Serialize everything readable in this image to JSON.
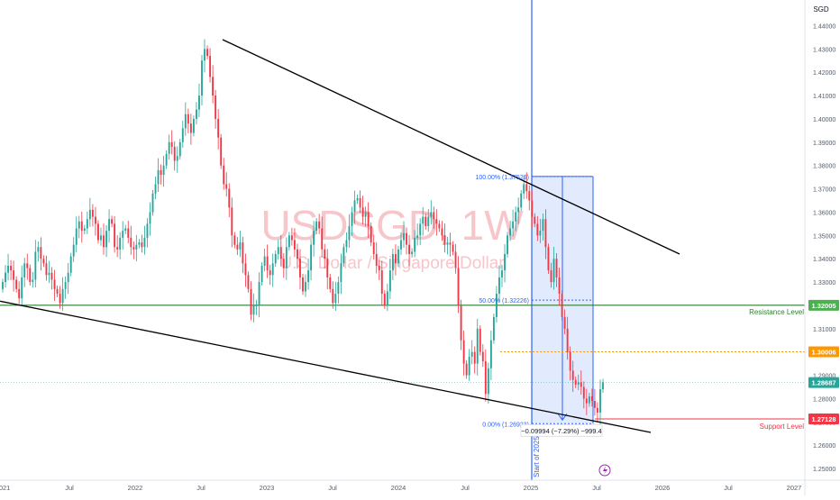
{
  "chart_data": {
    "type": "candlestick",
    "symbol": "USDSGD",
    "interval": "1W",
    "watermark_symbol": "USDSGD, 1W",
    "watermark_name": "U.S. Dollar / Singapore Dollar",
    "currency": "SGD",
    "ylim": [
      1.245,
      1.451
    ],
    "y_ticks": [
      "1.44000",
      "1.43000",
      "1.42000",
      "1.41000",
      "1.40000",
      "1.39000",
      "1.38000",
      "1.37000",
      "1.36000",
      "1.35000",
      "1.34000",
      "1.33000",
      "1.32000",
      "1.31000",
      "1.30000",
      "1.29000",
      "1.28000",
      "1.27000",
      "1.26000",
      "1.25000"
    ],
    "x_ticks": [
      "2021",
      "Jul",
      "2022",
      "Jul",
      "2023",
      "Jul",
      "2024",
      "Jul",
      "2025",
      "Jul",
      "2026",
      "Jul",
      "2027"
    ],
    "price_badges": [
      {
        "value": "1.32005",
        "color": "#4caf50"
      },
      {
        "value": "1.30006",
        "color": "#ff9800"
      },
      {
        "value": "1.28687",
        "color": "#26a69a"
      },
      {
        "value": "1.27128",
        "color": "#f23645"
      }
    ],
    "levels": {
      "resistance": {
        "value": 1.32005,
        "label": "Resistance Level",
        "color": "#2e7d32"
      },
      "support": {
        "value": 1.27128,
        "label": "Support Level",
        "color": "#f23645"
      },
      "dotted": {
        "value": 1.30006,
        "color": "#ff9800"
      },
      "current": {
        "value": 1.28687,
        "color": "#26a69a"
      }
    },
    "fib": [
      {
        "label": "100.00% (1.37529)"
      },
      {
        "label": "50.00% (1.32226)"
      },
      {
        "label": "0.00% (1.26923)"
      }
    ],
    "measure_label": "−0.09994 (−7.29%) −999.4",
    "vline_label": "Start of 2025",
    "colors": {
      "up": "#26a69a",
      "down": "#f23645",
      "trend": "#000000",
      "vline": "#2962ff",
      "box": "#dbe6fd"
    },
    "candles_close": [
      1.33,
      1.334,
      1.337,
      1.335,
      1.331,
      1.327,
      1.323,
      1.332,
      1.338,
      1.336,
      1.33,
      1.331,
      1.343,
      1.345,
      1.34,
      1.338,
      1.333,
      1.334,
      1.331,
      1.327,
      1.325,
      1.321,
      1.327,
      1.33,
      1.334,
      1.341,
      1.346,
      1.353,
      1.356,
      1.352,
      1.353,
      1.357,
      1.361,
      1.358,
      1.355,
      1.348,
      1.35,
      1.345,
      1.352,
      1.357,
      1.355,
      1.345,
      1.344,
      1.349,
      1.352,
      1.353,
      1.349,
      1.345,
      1.344,
      1.346,
      1.347,
      1.345,
      1.349,
      1.355,
      1.36,
      1.368,
      1.372,
      1.378,
      1.376,
      1.38,
      1.385,
      1.39,
      1.388,
      1.382,
      1.384,
      1.39,
      1.396,
      1.402,
      1.398,
      1.394,
      1.4,
      1.404,
      1.41,
      1.425,
      1.43,
      1.427,
      1.418,
      1.41,
      1.4,
      1.392,
      1.38,
      1.372,
      1.37,
      1.362,
      1.35,
      1.346,
      1.344,
      1.347,
      1.338,
      1.333,
      1.327,
      1.316,
      1.32,
      1.32,
      1.33,
      1.337,
      1.341,
      1.335,
      1.333,
      1.338,
      1.342,
      1.345,
      1.34,
      1.336,
      1.345,
      1.35,
      1.348,
      1.344,
      1.34,
      1.332,
      1.326,
      1.33,
      1.335,
      1.346,
      1.352,
      1.356,
      1.353,
      1.344,
      1.34,
      1.332,
      1.327,
      1.321,
      1.325,
      1.33,
      1.338,
      1.345,
      1.348,
      1.354,
      1.36,
      1.365,
      1.366,
      1.362,
      1.358,
      1.36,
      1.354,
      1.347,
      1.342,
      1.337,
      1.335,
      1.325,
      1.32,
      1.326,
      1.335,
      1.342,
      1.338,
      1.344,
      1.348,
      1.351,
      1.346,
      1.342,
      1.343,
      1.349,
      1.35,
      1.355,
      1.358,
      1.354,
      1.358,
      1.36,
      1.357,
      1.355,
      1.353,
      1.35,
      1.346,
      1.347,
      1.346,
      1.343,
      1.336,
      1.32,
      1.305,
      1.295,
      1.29,
      1.298,
      1.3,
      1.295,
      1.31,
      1.3,
      1.296,
      1.282,
      1.293,
      1.305,
      1.315,
      1.325,
      1.332,
      1.335,
      1.342,
      1.35,
      1.353,
      1.356,
      1.36,
      1.362,
      1.368,
      1.372,
      1.369,
      1.365,
      1.358,
      1.355,
      1.35,
      1.352,
      1.357,
      1.345,
      1.335,
      1.33,
      1.34,
      1.332,
      1.325,
      1.315,
      1.31,
      1.3,
      1.292,
      1.288,
      1.286,
      1.287,
      1.285,
      1.28,
      1.278,
      1.281,
      1.279,
      1.276,
      1.274,
      1.284,
      1.287
    ],
    "timeline_icon": "lightning-icon"
  }
}
